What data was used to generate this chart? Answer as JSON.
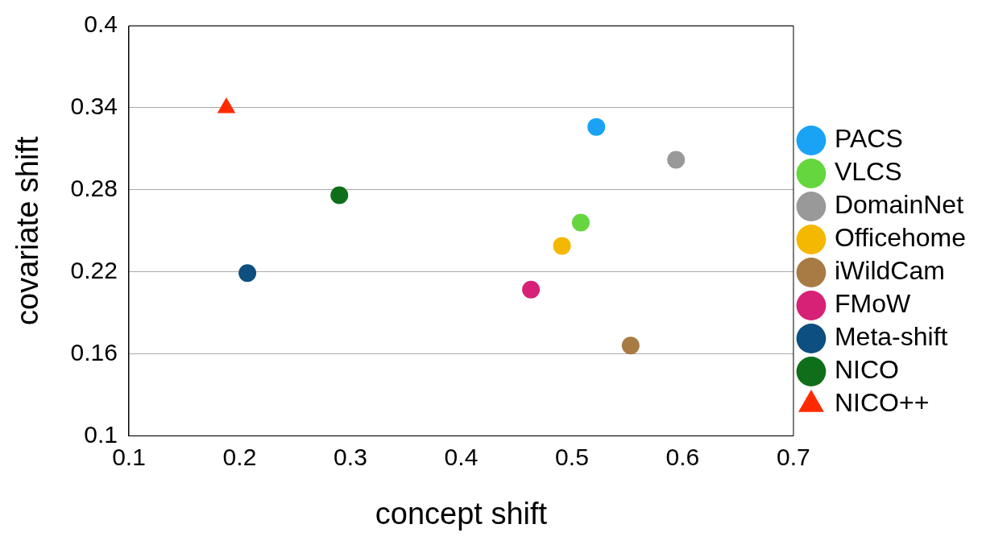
{
  "chart_data": {
    "type": "scatter",
    "xlabel": "concept shift",
    "ylabel": "covariate shift",
    "xlim": [
      0.1,
      0.7
    ],
    "ylim": [
      0.1,
      0.4
    ],
    "xticks": [
      0.1,
      0.2,
      0.3,
      0.4,
      0.5,
      0.6,
      0.7
    ],
    "yticks": [
      0.1,
      0.16,
      0.22,
      0.28,
      0.34,
      0.4
    ],
    "grid": "y",
    "legend": "right",
    "marker": "circle",
    "series": [
      {
        "name": "PACS",
        "color": "#1aa3f5",
        "x": [
          0.522
        ],
        "values": [
          0.326
        ]
      },
      {
        "name": "VLCS",
        "color": "#66d63e",
        "x": [
          0.508
        ],
        "values": [
          0.256
        ]
      },
      {
        "name": "DomainNet",
        "color": "#999999",
        "x": [
          0.594
        ],
        "values": [
          0.302
        ]
      },
      {
        "name": "Officehome",
        "color": "#f5b800",
        "x": [
          0.491
        ],
        "values": [
          0.239
        ]
      },
      {
        "name": "iWildCam",
        "color": "#a87b45",
        "x": [
          0.553
        ],
        "values": [
          0.166
        ]
      },
      {
        "name": "FMoW",
        "color": "#d62176",
        "x": [
          0.463
        ],
        "values": [
          0.207
        ]
      },
      {
        "name": "Meta-shift",
        "color": "#0d4f80",
        "x": [
          0.207
        ],
        "values": [
          0.219
        ]
      },
      {
        "name": "NICO",
        "color": "#0f6e1a",
        "x": [
          0.29
        ],
        "values": [
          0.276
        ]
      },
      {
        "name": "NICO++",
        "color": "#ff2a00",
        "x": [
          0.188
        ],
        "values": [
          0.34
        ],
        "marker": "triangle"
      }
    ]
  }
}
